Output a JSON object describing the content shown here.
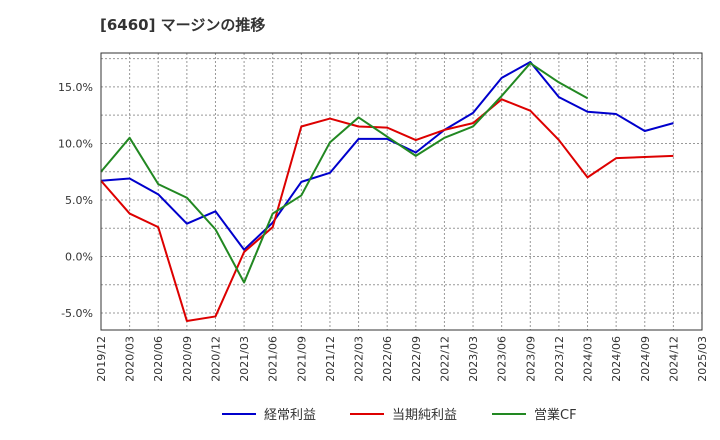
{
  "chart_data": {
    "type": "line",
    "title": "[6460]  マージンの推移",
    "xlabel": "",
    "ylabel": "",
    "ylim": [
      -6.5,
      18
    ],
    "y_ticks": [
      -5,
      0,
      5,
      10,
      15
    ],
    "y_tick_labels": [
      "-5.0%",
      "0.0%",
      "5.0%",
      "10.0%",
      "15.0%"
    ],
    "x": [
      "2019/12",
      "2020/03",
      "2020/06",
      "2020/09",
      "2020/12",
      "2021/03",
      "2021/06",
      "2021/09",
      "2021/12",
      "2022/03",
      "2022/06",
      "2022/09",
      "2022/12",
      "2023/03",
      "2023/06",
      "2023/09",
      "2023/12",
      "2024/03",
      "2024/06",
      "2024/09",
      "2024/12",
      "2025/03"
    ],
    "grid": true,
    "legend": "bottom",
    "series": [
      {
        "name": "経常利益",
        "color": "#0000cc",
        "values": [
          6.7,
          6.9,
          5.5,
          2.9,
          4.0,
          0.6,
          3.0,
          6.6,
          7.4,
          10.4,
          10.4,
          9.2,
          11.2,
          12.7,
          15.8,
          17.2,
          14.1,
          12.8,
          12.6,
          11.1,
          11.8,
          null
        ]
      },
      {
        "name": "当期純利益",
        "color": "#dd0000",
        "values": [
          6.7,
          3.8,
          2.6,
          -5.7,
          -5.3,
          0.4,
          2.6,
          11.5,
          12.2,
          11.5,
          11.4,
          10.3,
          11.2,
          11.8,
          13.9,
          12.9,
          10.3,
          7.0,
          8.7,
          8.8,
          8.9,
          null
        ]
      },
      {
        "name": "営業CF",
        "color": "#228822",
        "values": [
          7.5,
          10.5,
          6.4,
          5.2,
          2.4,
          -2.3,
          3.8,
          5.4,
          10.1,
          12.3,
          10.6,
          8.9,
          10.5,
          11.5,
          14.2,
          17.1,
          15.4,
          14.0,
          null,
          null,
          null,
          null
        ]
      }
    ]
  }
}
